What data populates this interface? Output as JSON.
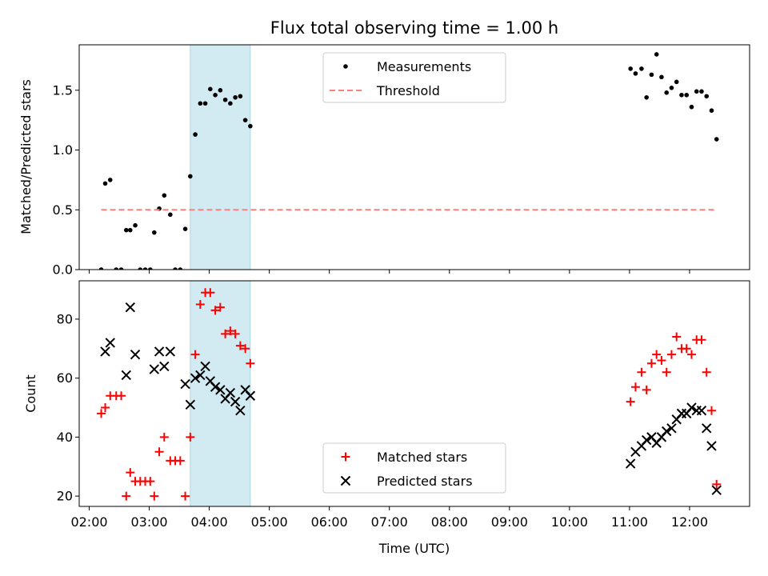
{
  "chart_data": [
    {
      "type": "scatter",
      "title": "Flux total observing time = 1.00 h",
      "xlabel": "",
      "ylabel": "Matched/Predicted stars",
      "xlim": [
        "01:50",
        "13:00"
      ],
      "ylim": [
        0,
        1.88
      ],
      "yticks": [
        "0.0",
        "0.5",
        "1.0",
        "1.5"
      ],
      "shaded_region": [
        "03:41",
        "04:41"
      ],
      "legend_position": "top-center",
      "series": [
        {
          "name": "Measurements",
          "marker": "dot",
          "color": "#000000",
          "points": [
            [
              "02:12",
              0.0
            ],
            [
              "02:16",
              0.72
            ],
            [
              "02:21",
              0.75
            ],
            [
              "02:27",
              0.0
            ],
            [
              "02:32",
              0.0
            ],
            [
              "02:37",
              0.33
            ],
            [
              "02:41",
              0.33
            ],
            [
              "02:46",
              0.37
            ],
            [
              "02:51",
              0.0
            ],
            [
              "02:56",
              0.0
            ],
            [
              "03:01",
              0.0
            ],
            [
              "03:05",
              0.31
            ],
            [
              "03:10",
              0.51
            ],
            [
              "03:15",
              0.62
            ],
            [
              "03:21",
              0.46
            ],
            [
              "03:26",
              0.0
            ],
            [
              "03:31",
              0.0
            ],
            [
              "03:36",
              0.34
            ],
            [
              "03:41",
              0.78
            ],
            [
              "03:46",
              1.13
            ],
            [
              "03:51",
              1.39
            ],
            [
              "03:56",
              1.39
            ],
            [
              "04:01",
              1.51
            ],
            [
              "04:06",
              1.46
            ],
            [
              "04:11",
              1.5
            ],
            [
              "04:16",
              1.42
            ],
            [
              "04:21",
              1.39
            ],
            [
              "04:26",
              1.44
            ],
            [
              "04:31",
              1.45
            ],
            [
              "04:36",
              1.25
            ],
            [
              "04:41",
              1.2
            ],
            [
              "11:01",
              1.68
            ],
            [
              "11:06",
              1.64
            ],
            [
              "11:12",
              1.68
            ],
            [
              "11:17",
              1.44
            ],
            [
              "11:22",
              1.63
            ],
            [
              "11:27",
              1.8
            ],
            [
              "11:32",
              1.61
            ],
            [
              "11:37",
              1.48
            ],
            [
              "11:42",
              1.52
            ],
            [
              "11:47",
              1.57
            ],
            [
              "11:52",
              1.46
            ],
            [
              "11:57",
              1.46
            ],
            [
              "12:02",
              1.36
            ],
            [
              "12:07",
              1.49
            ],
            [
              "12:12",
              1.49
            ],
            [
              "12:17",
              1.45
            ],
            [
              "12:22",
              1.33
            ],
            [
              "12:27",
              1.09
            ]
          ]
        },
        {
          "name": "Threshold",
          "marker": "dashed-line",
          "color": "#ff7f7f",
          "points": [
            [
              "02:12",
              0.5
            ],
            [
              "12:27",
              0.5
            ]
          ]
        }
      ]
    },
    {
      "type": "scatter",
      "title": "",
      "xlabel": "Time (UTC)",
      "ylabel": "Count",
      "xlim": [
        "01:50",
        "13:00"
      ],
      "ylim": [
        16.5,
        93
      ],
      "yticks": [
        "20",
        "40",
        "60",
        "80"
      ],
      "xticks": [
        "02:00",
        "03:00",
        "04:00",
        "05:00",
        "06:00",
        "07:00",
        "08:00",
        "09:00",
        "10:00",
        "11:00",
        "12:00"
      ],
      "shaded_region": [
        "03:41",
        "04:41"
      ],
      "legend_position": "bottom-center",
      "series": [
        {
          "name": "Matched stars",
          "marker": "plus",
          "color": "#ff0000",
          "points": [
            [
              "02:12",
              48
            ],
            [
              "02:16",
              50
            ],
            [
              "02:21",
              54
            ],
            [
              "02:27",
              54
            ],
            [
              "02:32",
              54
            ],
            [
              "02:37",
              20
            ],
            [
              "02:41",
              28
            ],
            [
              "02:46",
              25
            ],
            [
              "02:51",
              25
            ],
            [
              "02:56",
              25
            ],
            [
              "03:01",
              25
            ],
            [
              "03:05",
              20
            ],
            [
              "03:10",
              35
            ],
            [
              "03:15",
              40
            ],
            [
              "03:21",
              32
            ],
            [
              "03:26",
              32
            ],
            [
              "03:31",
              32
            ],
            [
              "03:36",
              20
            ],
            [
              "03:41",
              40
            ],
            [
              "03:46",
              68
            ],
            [
              "03:51",
              85
            ],
            [
              "03:56",
              89
            ],
            [
              "04:01",
              89
            ],
            [
              "04:06",
              83
            ],
            [
              "04:11",
              84
            ],
            [
              "04:16",
              75
            ],
            [
              "04:21",
              76
            ],
            [
              "04:26",
              75
            ],
            [
              "04:31",
              71
            ],
            [
              "04:36",
              70
            ],
            [
              "04:41",
              65
            ],
            [
              "11:01",
              52
            ],
            [
              "11:06",
              57
            ],
            [
              "11:12",
              62
            ],
            [
              "11:17",
              56
            ],
            [
              "11:22",
              65
            ],
            [
              "11:27",
              68
            ],
            [
              "11:32",
              66
            ],
            [
              "11:37",
              62
            ],
            [
              "11:42",
              68
            ],
            [
              "11:47",
              74
            ],
            [
              "11:52",
              70
            ],
            [
              "11:57",
              70
            ],
            [
              "12:02",
              68
            ],
            [
              "12:07",
              73
            ],
            [
              "12:12",
              73
            ],
            [
              "12:17",
              62
            ],
            [
              "12:22",
              49
            ],
            [
              "12:27",
              24
            ]
          ]
        },
        {
          "name": "Predicted stars",
          "marker": "x",
          "color": "#000000",
          "points": [
            [
              "02:16",
              69
            ],
            [
              "02:21",
              72
            ],
            [
              "02:37",
              61
            ],
            [
              "02:41",
              84
            ],
            [
              "02:46",
              68
            ],
            [
              "03:05",
              63
            ],
            [
              "03:10",
              69
            ],
            [
              "03:15",
              64
            ],
            [
              "03:21",
              69
            ],
            [
              "03:36",
              58
            ],
            [
              "03:41",
              51
            ],
            [
              "03:46",
              60
            ],
            [
              "03:51",
              61
            ],
            [
              "03:56",
              64
            ],
            [
              "04:01",
              59
            ],
            [
              "04:06",
              57
            ],
            [
              "04:11",
              56
            ],
            [
              "04:16",
              53
            ],
            [
              "04:21",
              55
            ],
            [
              "04:26",
              52
            ],
            [
              "04:31",
              49
            ],
            [
              "04:36",
              56
            ],
            [
              "04:41",
              54
            ],
            [
              "11:01",
              31
            ],
            [
              "11:06",
              35
            ],
            [
              "11:12",
              37
            ],
            [
              "11:17",
              39
            ],
            [
              "11:22",
              40
            ],
            [
              "11:27",
              38
            ],
            [
              "11:32",
              40
            ],
            [
              "11:37",
              42
            ],
            [
              "11:42",
              43
            ],
            [
              "11:47",
              46
            ],
            [
              "11:52",
              48
            ],
            [
              "11:57",
              48
            ],
            [
              "12:02",
              50
            ],
            [
              "12:07",
              49
            ],
            [
              "12:12",
              49
            ],
            [
              "12:17",
              43
            ],
            [
              "12:22",
              37
            ],
            [
              "12:27",
              22
            ]
          ]
        }
      ]
    }
  ]
}
